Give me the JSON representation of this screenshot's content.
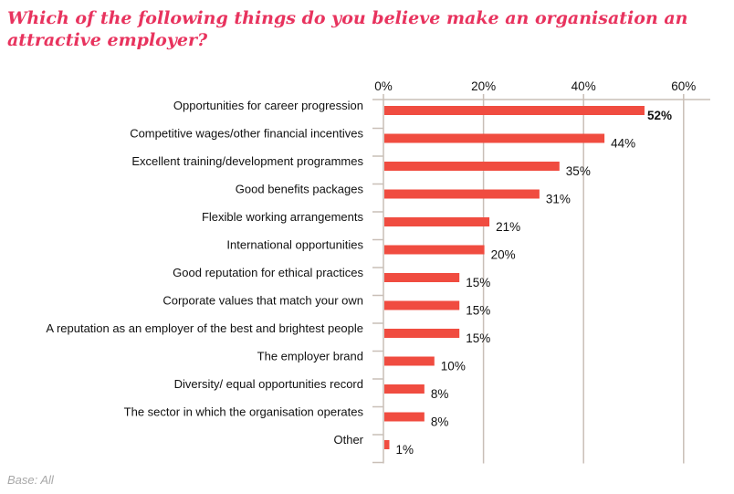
{
  "title": "Which of the following things do you believe make an organisation an attractive employer?",
  "footnote": "Base: All",
  "colors": {
    "bar": "#f04c40",
    "title": "#e8335e",
    "grid": "#c9bfb7"
  },
  "chart_data": {
    "type": "bar",
    "orientation": "horizontal",
    "categories": [
      "Opportunities for career progression",
      "Competitive wages/other financial incentives",
      "Excellent training/development programmes",
      "Good benefits packages",
      "Flexible working arrangements",
      "International opportunities",
      "Good reputation for ethical practices",
      "Corporate values that match your own",
      "A reputation as an employer of the best and brightest people",
      "The employer brand",
      "Diversity/ equal opportunities record",
      "The sector in which the organisation operates",
      "Other"
    ],
    "values": [
      52,
      44,
      35,
      31,
      21,
      20,
      15,
      15,
      15,
      10,
      8,
      8,
      1
    ],
    "data_labels": [
      "52%",
      "44%",
      "35%",
      "31%",
      "21%",
      "20%",
      "15%",
      "15%",
      "15%",
      "10%",
      "8%",
      "8%",
      "1%"
    ],
    "xlim": [
      0,
      60
    ],
    "xticks": [
      0,
      20,
      40,
      60
    ],
    "xtick_labels": [
      "0%",
      "20%",
      "40%",
      "60%"
    ],
    "axis_position": "top",
    "grid": true
  }
}
